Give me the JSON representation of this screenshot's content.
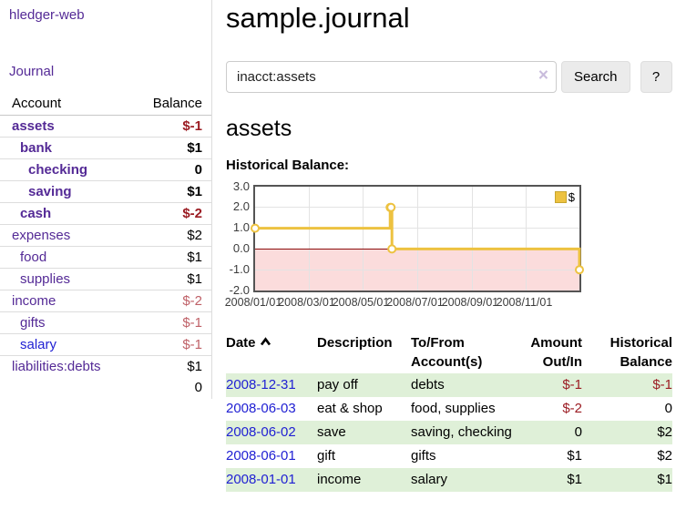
{
  "sidebar": {
    "brand": "hledger-web",
    "journal_link": "Journal",
    "accounts": {
      "account_header": "Account",
      "balance_header": "Balance",
      "rows": [
        {
          "name": "assets",
          "balance": "$-1",
          "indent": 0,
          "bold": true,
          "neg": "strong",
          "color": "purple"
        },
        {
          "name": "bank",
          "balance": "$1",
          "indent": 1,
          "bold": true,
          "neg": "",
          "color": "purple"
        },
        {
          "name": "checking",
          "balance": "0",
          "indent": 2,
          "bold": true,
          "neg": "",
          "color": "purple"
        },
        {
          "name": "saving",
          "balance": "$1",
          "indent": 2,
          "bold": true,
          "neg": "",
          "color": "purple"
        },
        {
          "name": "cash",
          "balance": "$-2",
          "indent": 1,
          "bold": true,
          "neg": "strong",
          "color": "purple"
        },
        {
          "name": "expenses",
          "balance": "$2",
          "indent": 0,
          "bold": false,
          "neg": "",
          "color": "purple"
        },
        {
          "name": "food",
          "balance": "$1",
          "indent": 1,
          "bold": false,
          "neg": "",
          "color": "purple"
        },
        {
          "name": "supplies",
          "balance": "$1",
          "indent": 1,
          "bold": false,
          "neg": "",
          "color": "purple"
        },
        {
          "name": "income",
          "balance": "$-2",
          "indent": 0,
          "bold": false,
          "neg": "muted",
          "color": "purple"
        },
        {
          "name": "gifts",
          "balance": "$-1",
          "indent": 1,
          "bold": false,
          "neg": "muted",
          "color": "purple"
        },
        {
          "name": "salary",
          "balance": "$-1",
          "indent": 1,
          "bold": false,
          "neg": "muted",
          "color": "blue"
        },
        {
          "name": "liabilities:debts",
          "balance": "$1",
          "indent": 0,
          "bold": false,
          "neg": "",
          "color": "purple"
        }
      ],
      "total": "0"
    }
  },
  "main": {
    "title": "sample.journal",
    "search": {
      "value": "inacct:assets",
      "clear_icon": "×",
      "button_label": "Search",
      "help_label": "?"
    },
    "account_heading": "assets",
    "chart_label": "Historical Balance:"
  },
  "chart_data": {
    "type": "line",
    "title": "Historical Balance",
    "step": true,
    "series": [
      {
        "name": "$",
        "color": "#edc240",
        "points": [
          [
            "2008-01-01",
            1
          ],
          [
            "2008-06-01",
            2
          ],
          [
            "2008-06-02",
            2
          ],
          [
            "2008-06-03",
            0
          ],
          [
            "2008-12-31",
            -1
          ]
        ]
      }
    ],
    "x_range": [
      "2008-01-01",
      "2008-12-31"
    ],
    "x_ticks": [
      "2008/01/01",
      "2008/03/01",
      "2008/05/01",
      "2008/07/01",
      "2008/09/01",
      "2008/11/01"
    ],
    "y_ticks": [
      "3.0",
      "2.0",
      "1.0",
      "0.0",
      "-1.0",
      "-2.0"
    ],
    "ylim": [
      -2,
      3
    ],
    "grid": true,
    "negative_region_color": "#fbdcdc",
    "zero_line_color": "#8c0d0d",
    "legend": {
      "label": "$",
      "position": "top-right"
    }
  },
  "register": {
    "headers": {
      "date": "Date",
      "description": "Description",
      "accounts_line1": "To/From",
      "accounts_line2": "Account(s)",
      "amount_line1": "Amount",
      "amount_line2": "Out/In",
      "balance_line1": "Historical",
      "balance_line2": "Balance"
    },
    "sort": {
      "column": "date",
      "direction": "ascending"
    },
    "rows": [
      {
        "date": "2008-12-31",
        "description": "pay off",
        "accounts": "debts",
        "amount": "$-1",
        "balance": "$-1",
        "amount_neg": true,
        "balance_neg": true,
        "shaded": true
      },
      {
        "date": "2008-06-03",
        "description": "eat & shop",
        "accounts": "food, supplies",
        "amount": "$-2",
        "balance": "0",
        "amount_neg": true,
        "balance_neg": false,
        "shaded": false
      },
      {
        "date": "2008-06-02",
        "description": "save",
        "accounts": "saving, checking",
        "amount": "0",
        "balance": "$2",
        "amount_neg": false,
        "balance_neg": false,
        "shaded": true
      },
      {
        "date": "2008-06-01",
        "description": "gift",
        "accounts": "gifts",
        "amount": "$1",
        "balance": "$2",
        "amount_neg": false,
        "balance_neg": false,
        "shaded": false
      },
      {
        "date": "2008-01-01",
        "description": "income",
        "accounts": "salary",
        "amount": "$1",
        "balance": "$1",
        "amount_neg": false,
        "balance_neg": false,
        "shaded": true
      }
    ]
  }
}
